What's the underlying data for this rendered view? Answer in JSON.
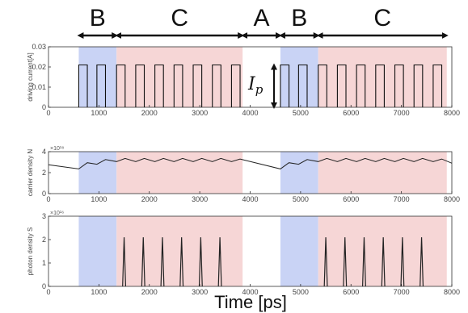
{
  "chart_data": {
    "type": "line",
    "x_title": "Time [ps]",
    "xlim": [
      0,
      8000
    ],
    "x_ticks": [
      "0",
      "1000",
      "2000",
      "3000",
      "4000",
      "5000",
      "6000",
      "7000",
      "8000"
    ],
    "regions": [
      {
        "label": "B",
        "start": 600,
        "end": 1350,
        "color": "#c9d3f5"
      },
      {
        "label": "C",
        "start": 1350,
        "end": 3850,
        "color": "#f6d6d6"
      },
      {
        "label": "A",
        "start": 3850,
        "end": 4600,
        "color": ""
      },
      {
        "label": "B",
        "start": 4600,
        "end": 5350,
        "color": "#c9d3f5"
      },
      {
        "label": "C",
        "start": 5350,
        "end": 7900,
        "color": "#f6d6d6"
      }
    ],
    "annotation": {
      "symbol": "I",
      "subscript": "p"
    },
    "panels": [
      {
        "ylabel": "driving current[A]",
        "exponent": "",
        "ylim": [
          0,
          0.03
        ],
        "y_ticks": [
          "0",
          "0.01",
          "0.02",
          "0.03"
        ],
        "series": [
          {
            "kind": "pulses",
            "level": 0.021,
            "pulse_width": 170,
            "pulse_starts": [
              600,
              960,
              1350,
              1730,
              2110,
              2490,
              2870,
              3250,
              3630,
              4600,
              4960,
              5350,
              5730,
              6110,
              6490,
              6870,
              7250,
              7630
            ]
          }
        ]
      },
      {
        "ylabel": "carrier density N",
        "exponent": "×10¹⁸",
        "ylim": [
          0,
          4
        ],
        "y_ticks": [
          "0",
          "2",
          "4"
        ],
        "series": [
          {
            "kind": "line",
            "x": [
              0,
              600,
              770,
              960,
              1130,
              1350,
              1520,
              1730,
              1900,
              2110,
              2280,
              2490,
              2660,
              2870,
              3040,
              3250,
              3420,
              3630,
              3800,
              4600,
              4770,
              4960,
              5130,
              5350,
              5520,
              5730,
              5900,
              6110,
              6280,
              6490,
              6660,
              6870,
              7040,
              7250,
              7420,
              7630,
              7800,
              8000
            ],
            "y": [
              2.75,
              2.35,
              2.95,
              2.8,
              3.25,
              3.05,
              3.35,
              3.05,
              3.35,
              3.05,
              3.35,
              3.05,
              3.35,
              3.05,
              3.35,
              3.05,
              3.35,
              3.05,
              3.3,
              2.35,
              2.95,
              2.8,
              3.25,
              3.05,
              3.35,
              3.05,
              3.35,
              3.05,
              3.35,
              3.05,
              3.35,
              3.05,
              3.35,
              3.05,
              3.35,
              3.05,
              3.3,
              2.9
            ]
          }
        ]
      },
      {
        "ylabel": "photon density S",
        "exponent": "×10¹⁶",
        "ylim": [
          0,
          3
        ],
        "y_ticks": [
          "0",
          "1",
          "2",
          "3"
        ],
        "series": [
          {
            "kind": "spikes",
            "height": 2.1,
            "width": 60,
            "positions": [
              1500,
              1880,
              2260,
              2640,
              3020,
              3400,
              5500,
              5880,
              6260,
              6640,
              7020,
              7400
            ]
          }
        ]
      }
    ]
  }
}
